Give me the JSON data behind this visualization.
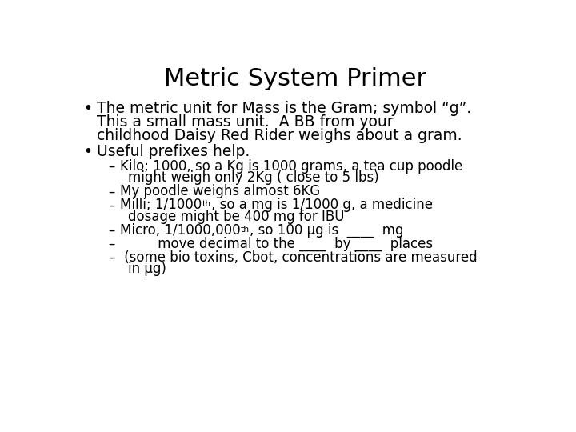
{
  "title": "Metric System Primer",
  "title_fontsize": 22,
  "background_color": "#ffffff",
  "text_color": "#000000",
  "font_family": "DejaVu Sans",
  "bullet1_line1": "The metric unit for Mass is the Gram; symbol “g”.",
  "bullet1_line2": "This a small mass unit.  A BB from your",
  "bullet1_line3": "childhood Daisy Red Rider weighs about a gram.",
  "bullet2": "Useful prefixes help.",
  "sub1_line1": "Kilo; 1000, so a Kg is 1000 grams, a tea cup poodle",
  "sub1_line2": "might weigh only 2Kg ( close to 5 lbs)",
  "sub2": "My poodle weighs almost 6KG",
  "sub3_pre": "Milli; 1/1000",
  "sub3_sup": "th",
  "sub3_post": ", so a mg is 1/1000 g, a medicine",
  "sub3_line2": "dosage might be 400 mg for IBU",
  "sub4_pre": "Micro, 1/1000,000",
  "sub4_sup": "th",
  "sub4_post": ", so 100 μg is  ____  mg",
  "sub5": "         move decimal to the ____  by ____  places",
  "sub6_line1": " (some bio toxins, Cbot, concentrations are measured",
  "sub6_line2": "in μg)",
  "fs_bullet": 13.5,
  "fs_sub": 12.0,
  "fs_title": 22
}
